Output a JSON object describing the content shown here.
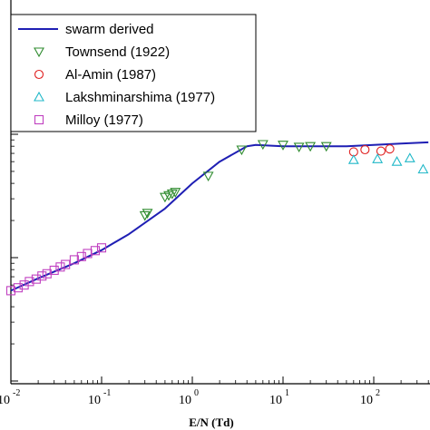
{
  "chart_data": {
    "type": "scatter",
    "xscale": "log",
    "yscale": "log",
    "xlabel": "E/N (Td)",
    "ylabel": "",
    "xlim": [
      0.01,
      400
    ],
    "grid": false,
    "legend_position": "top-left",
    "x_tick_labels": [
      {
        "base": "10",
        "exp": "-2",
        "value": 0.01
      },
      {
        "base": "10",
        "exp": "-1",
        "value": 0.1
      },
      {
        "base": "10",
        "exp": "0",
        "value": 1
      },
      {
        "base": "10",
        "exp": "1",
        "value": 10
      },
      {
        "base": "10",
        "exp": "2",
        "value": 100
      }
    ],
    "legend": [
      {
        "label": "swarm derived",
        "marker": "line",
        "color": "#1f1fb4"
      },
      {
        "label": "Townsend (1922)",
        "marker": "triangle-down",
        "color": "#2e8b2e"
      },
      {
        "label": "Al-Amin (1987)",
        "marker": "circle",
        "color": "#e02020"
      },
      {
        "label": "Lakshminarshima (1977)",
        "marker": "triangle-up",
        "color": "#20b8c8"
      },
      {
        "label": "Milloy (1977)",
        "marker": "square",
        "color": "#c040c0"
      }
    ],
    "series": [
      {
        "name": "swarm derived",
        "kind": "line",
        "color": "#1f1fb4",
        "x": [
          0.01,
          0.02,
          0.05,
          0.1,
          0.2,
          0.5,
          1,
          2,
          4,
          5,
          10,
          20,
          50,
          100,
          200,
          400
        ],
        "y": [
          0.054,
          0.068,
          0.09,
          0.115,
          0.155,
          0.25,
          0.4,
          0.6,
          0.8,
          0.82,
          0.8,
          0.8,
          0.8,
          0.82,
          0.84,
          0.86
        ]
      },
      {
        "name": "Townsend (1922)",
        "kind": "scatter",
        "marker": "triangle-down",
        "color": "#2e8b2e",
        "x": [
          0.3,
          0.32,
          0.5,
          0.55,
          0.6,
          0.65,
          1.5,
          3.5,
          6,
          10,
          15,
          20,
          30
        ],
        "y": [
          0.22,
          0.23,
          0.31,
          0.32,
          0.33,
          0.34,
          0.46,
          0.75,
          0.83,
          0.82,
          0.79,
          0.8,
          0.8
        ]
      },
      {
        "name": "Al-Amin (1987)",
        "kind": "scatter",
        "marker": "circle",
        "color": "#e02020",
        "x": [
          60,
          80,
          120,
          150
        ],
        "y": [
          0.72,
          0.75,
          0.73,
          0.76
        ]
      },
      {
        "name": "Lakshminarshima (1977)",
        "kind": "scatter",
        "marker": "triangle-up",
        "color": "#20b8c8",
        "x": [
          60,
          110,
          180,
          250,
          350
        ],
        "y": [
          0.62,
          0.63,
          0.6,
          0.64,
          0.52
        ]
      },
      {
        "name": "Milloy (1977)",
        "kind": "scatter",
        "marker": "square",
        "color": "#c040c0",
        "x": [
          0.01,
          0.012,
          0.014,
          0.016,
          0.019,
          0.022,
          0.025,
          0.03,
          0.035,
          0.04,
          0.05,
          0.06,
          0.07,
          0.085,
          0.1
        ],
        "y": [
          0.054,
          0.057,
          0.06,
          0.064,
          0.067,
          0.071,
          0.074,
          0.079,
          0.084,
          0.088,
          0.096,
          0.102,
          0.108,
          0.114,
          0.12
        ]
      }
    ]
  }
}
